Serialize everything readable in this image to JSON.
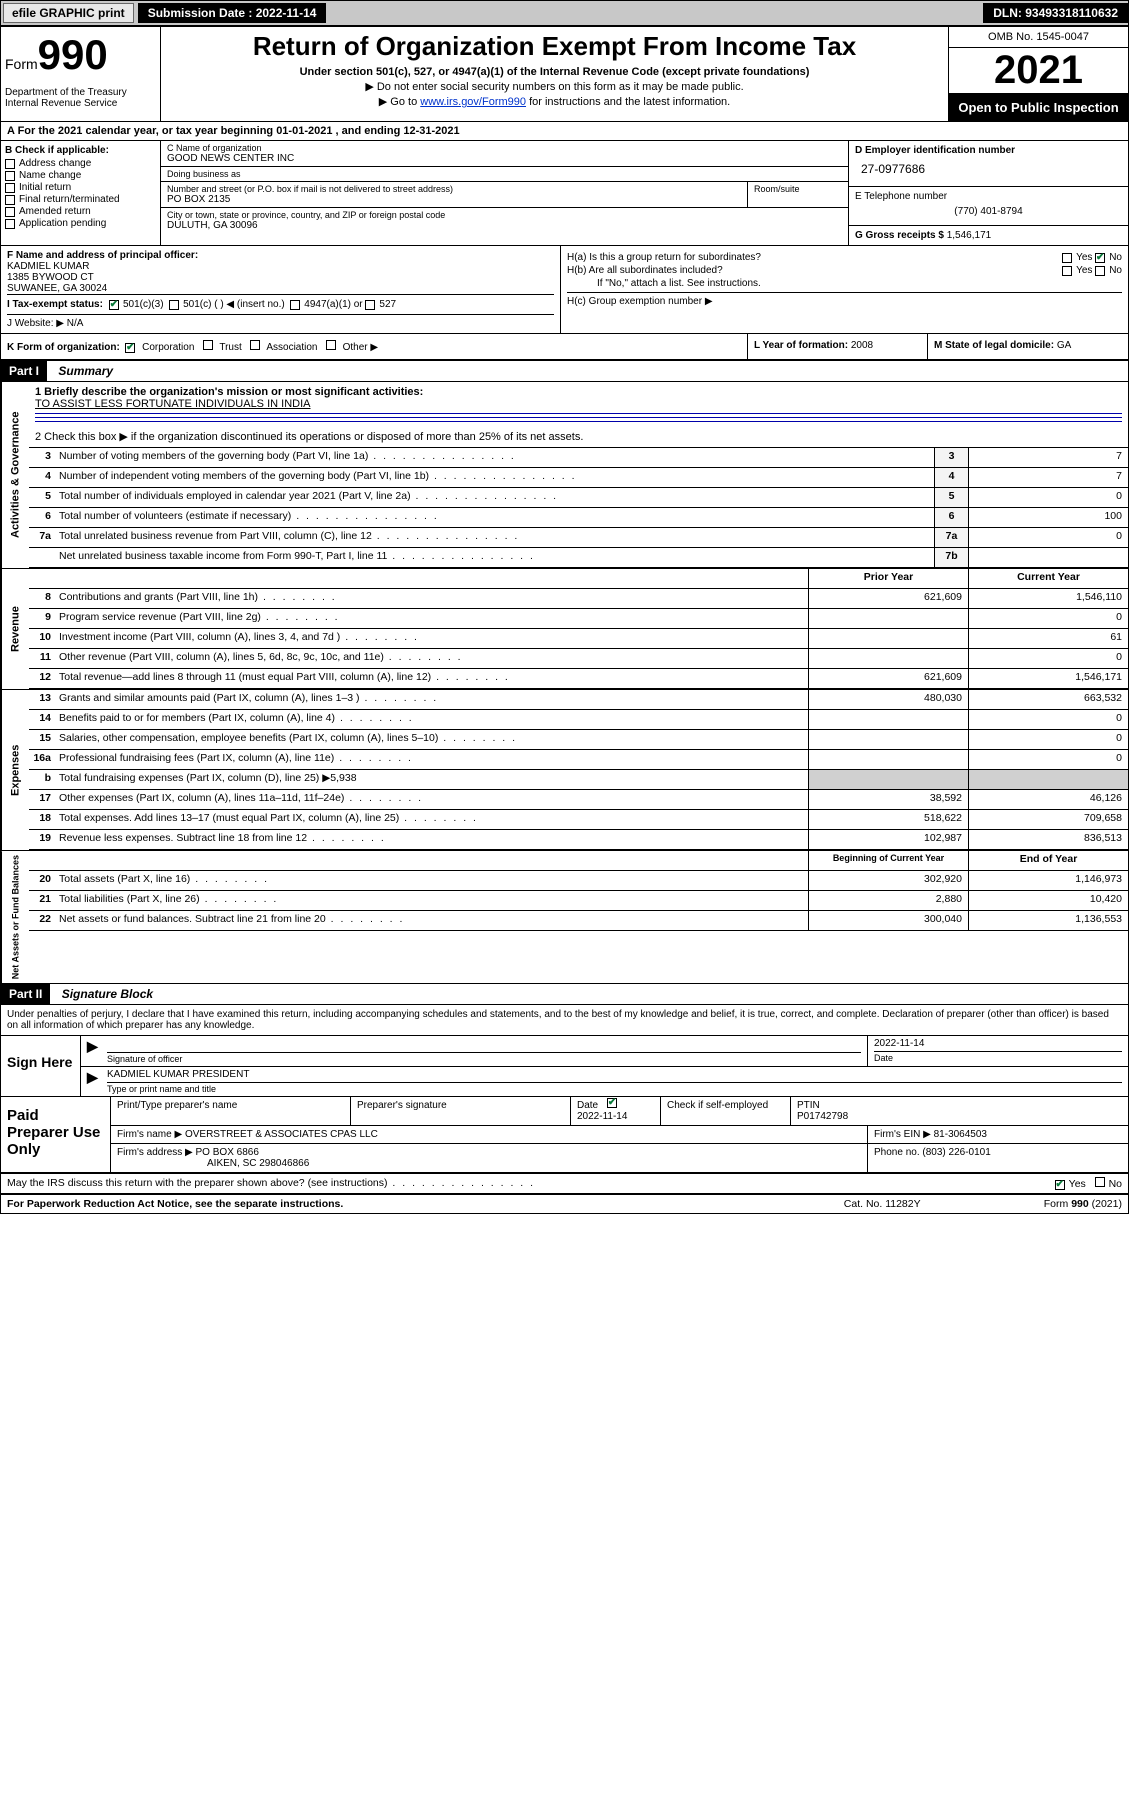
{
  "topbar": {
    "efile": "efile GRAPHIC print",
    "submission": "Submission Date : 2022-11-14",
    "dln": "DLN: 93493318110632"
  },
  "header": {
    "form_word": "Form",
    "form_num": "990",
    "title": "Return of Organization Exempt From Income Tax",
    "sub1": "Under section 501(c), 527, or 4947(a)(1) of the Internal Revenue Code (except private foundations)",
    "sub2": "▶ Do not enter social security numbers on this form as it may be made public.",
    "sub3_pre": "▶ Go to ",
    "sub3_link": "www.irs.gov/Form990",
    "sub3_post": " for instructions and the latest information.",
    "dept": "Department of the Treasury\nInternal Revenue Service",
    "omb": "OMB No. 1545-0047",
    "year": "2021",
    "inspect": "Open to Public Inspection"
  },
  "rowA": "A For the 2021 calendar year, or tax year beginning 01-01-2021   , and ending 12-31-2021",
  "secB": {
    "label": "B Check if applicable:",
    "items": [
      "Address change",
      "Name change",
      "Initial return",
      "Final return/terminated",
      "Amended return",
      "Application pending"
    ]
  },
  "secC": {
    "name_lbl": "C Name of organization",
    "name": "GOOD NEWS CENTER INC",
    "dba_lbl": "Doing business as",
    "dba": "",
    "addr_lbl": "Number and street (or P.O. box if mail is not delivered to street address)",
    "room_lbl": "Room/suite",
    "addr": "PO BOX 2135",
    "city_lbl": "City or town, state or province, country, and ZIP or foreign postal code",
    "city": "DULUTH, GA  30096"
  },
  "secD": {
    "ein_lbl": "D Employer identification number",
    "ein": "27-0977686",
    "tel_lbl": "E Telephone number",
    "tel": "(770) 401-8794",
    "gross_lbl": "G Gross receipts $",
    "gross": "1,546,171"
  },
  "secF": {
    "lbl": "F Name and address of principal officer:",
    "name": "KADMIEL KUMAR",
    "addr1": "1385 BYWOOD CT",
    "addr2": "SUWANEE, GA  30024"
  },
  "secH": {
    "a": "H(a)  Is this a group return for subordinates?",
    "b": "H(b)  Are all subordinates included?",
    "note": "If \"No,\" attach a list. See instructions.",
    "c": "H(c)  Group exemption number ▶"
  },
  "rowI": {
    "lbl": "I   Tax-exempt status:",
    "opts": [
      "501(c)(3)",
      "501(c) (  ) ◀ (insert no.)",
      "4947(a)(1) or",
      "527"
    ]
  },
  "rowJ": {
    "lbl": "J   Website: ▶",
    "val": "N/A"
  },
  "rowK": {
    "lbl": "K Form of organization:",
    "opts": [
      "Corporation",
      "Trust",
      "Association",
      "Other ▶"
    ]
  },
  "rowL": {
    "lbl": "L Year of formation:",
    "val": "2008"
  },
  "rowM": {
    "lbl": "M State of legal domicile:",
    "val": "GA"
  },
  "part1": {
    "hdr": "Part I",
    "title": "Summary"
  },
  "summary": {
    "side1": "Activities & Governance",
    "side2": "Revenue",
    "side3": "Expenses",
    "side4": "Net Assets or Fund Balances",
    "q1_lbl": "1  Briefly describe the organization's mission or most significant activities:",
    "q1_val": "TO ASSIST LESS FORTUNATE INDIVIDUALS IN INDIA",
    "q2": "2   Check this box ▶       if the organization discontinued its operations or disposed of more than 25% of its net assets.",
    "rows_gov": [
      {
        "n": "3",
        "d": "Number of voting members of the governing body (Part VI, line 1a)",
        "box": "3",
        "v": "7"
      },
      {
        "n": "4",
        "d": "Number of independent voting members of the governing body (Part VI, line 1b)",
        "box": "4",
        "v": "7"
      },
      {
        "n": "5",
        "d": "Total number of individuals employed in calendar year 2021 (Part V, line 2a)",
        "box": "5",
        "v": "0"
      },
      {
        "n": "6",
        "d": "Total number of volunteers (estimate if necessary)",
        "box": "6",
        "v": "100"
      },
      {
        "n": "7a",
        "d": "Total unrelated business revenue from Part VIII, column (C), line 12",
        "box": "7a",
        "v": "0"
      },
      {
        "n": "",
        "d": "Net unrelated business taxable income from Form 990-T, Part I, line 11",
        "box": "7b",
        "v": ""
      }
    ],
    "col_hdr_prior": "Prior Year",
    "col_hdr_curr": "Current Year",
    "rows_rev": [
      {
        "n": "8",
        "d": "Contributions and grants (Part VIII, line 1h)",
        "p": "621,609",
        "c": "1,546,110"
      },
      {
        "n": "9",
        "d": "Program service revenue (Part VIII, line 2g)",
        "p": "",
        "c": "0"
      },
      {
        "n": "10",
        "d": "Investment income (Part VIII, column (A), lines 3, 4, and 7d )",
        "p": "",
        "c": "61"
      },
      {
        "n": "11",
        "d": "Other revenue (Part VIII, column (A), lines 5, 6d, 8c, 9c, 10c, and 11e)",
        "p": "",
        "c": "0"
      },
      {
        "n": "12",
        "d": "Total revenue—add lines 8 through 11 (must equal Part VIII, column (A), line 12)",
        "p": "621,609",
        "c": "1,546,171"
      }
    ],
    "rows_exp": [
      {
        "n": "13",
        "d": "Grants and similar amounts paid (Part IX, column (A), lines 1–3 )",
        "p": "480,030",
        "c": "663,532"
      },
      {
        "n": "14",
        "d": "Benefits paid to or for members (Part IX, column (A), line 4)",
        "p": "",
        "c": "0"
      },
      {
        "n": "15",
        "d": "Salaries, other compensation, employee benefits (Part IX, column (A), lines 5–10)",
        "p": "",
        "c": "0"
      },
      {
        "n": "16a",
        "d": "Professional fundraising fees (Part IX, column (A), line 11e)",
        "p": "",
        "c": "0"
      }
    ],
    "row_16b": {
      "n": "b",
      "d": "Total fundraising expenses (Part IX, column (D), line 25) ▶5,938"
    },
    "rows_exp2": [
      {
        "n": "17",
        "d": "Other expenses (Part IX, column (A), lines 11a–11d, 11f–24e)",
        "p": "38,592",
        "c": "46,126"
      },
      {
        "n": "18",
        "d": "Total expenses. Add lines 13–17 (must equal Part IX, column (A), line 25)",
        "p": "518,622",
        "c": "709,658"
      },
      {
        "n": "19",
        "d": "Revenue less expenses. Subtract line 18 from line 12",
        "p": "102,987",
        "c": "836,513"
      }
    ],
    "col_hdr_beg": "Beginning of Current Year",
    "col_hdr_end": "End of Year",
    "rows_net": [
      {
        "n": "20",
        "d": "Total assets (Part X, line 16)",
        "p": "302,920",
        "c": "1,146,973"
      },
      {
        "n": "21",
        "d": "Total liabilities (Part X, line 26)",
        "p": "2,880",
        "c": "10,420"
      },
      {
        "n": "22",
        "d": "Net assets or fund balances. Subtract line 21 from line 20",
        "p": "300,040",
        "c": "1,136,553"
      }
    ]
  },
  "part2": {
    "hdr": "Part II",
    "title": "Signature Block"
  },
  "penalty": "Under penalties of perjury, I declare that I have examined this return, including accompanying schedules and statements, and to the best of my knowledge and belief, it is true, correct, and complete. Declaration of preparer (other than officer) is based on all information of which preparer has any knowledge.",
  "sign": {
    "label": "Sign Here",
    "sig_lbl": "Signature of officer",
    "date_lbl": "Date",
    "date": "2022-11-14",
    "name": "KADMIEL KUMAR  PRESIDENT",
    "name_lbl": "Type or print name and title"
  },
  "prep": {
    "label": "Paid Preparer Use Only",
    "h1": "Print/Type preparer's name",
    "h2": "Preparer's signature",
    "h3": "Date",
    "h3v": "2022-11-14",
    "h4": "Check         if self-employed",
    "h5": "PTIN",
    "h5v": "P01742798",
    "firm_lbl": "Firm's name     ▶",
    "firm": "OVERSTREET & ASSOCIATES CPAS LLC",
    "ein_lbl": "Firm's EIN ▶",
    "ein": "81-3064503",
    "addr_lbl": "Firm's address ▶",
    "addr1": "PO BOX 6866",
    "addr2": "AIKEN, SC  298046866",
    "phone_lbl": "Phone no.",
    "phone": "(803) 226-0101"
  },
  "footer": {
    "discuss": "May the IRS discuss this return with the preparer shown above? (see instructions)",
    "pra": "For Paperwork Reduction Act Notice, see the separate instructions.",
    "cat": "Cat. No. 11282Y",
    "form": "Form 990 (2021)"
  }
}
